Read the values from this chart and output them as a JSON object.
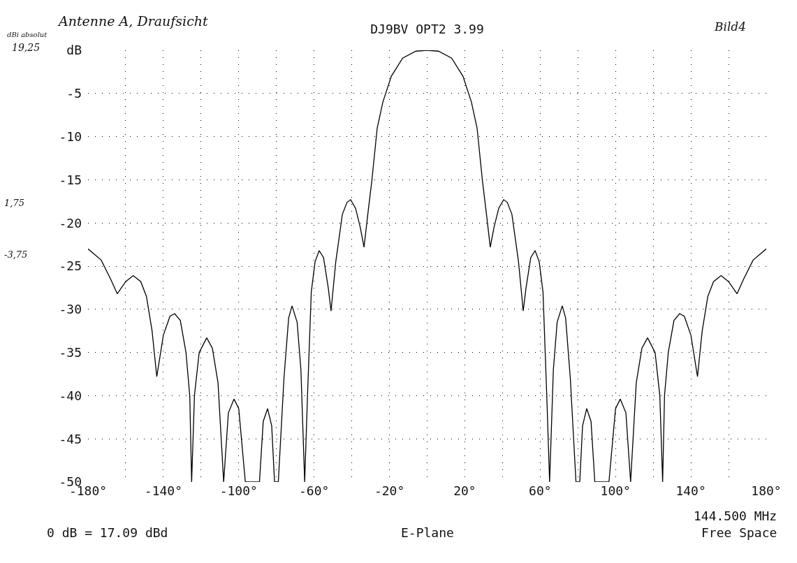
{
  "chart_data": {
    "type": "line",
    "title": "DJ9BV OPT2 3.99",
    "annotations": [
      "Antenne A, Draufsicht",
      "dBi absolut",
      "19,25",
      "Bild4",
      "1,75",
      "-3,75",
      "144.500 MHz",
      "0 dB = 17.09 dBd",
      "E-Plane",
      "Free Space"
    ],
    "x": [
      -180,
      -173,
      -168,
      -164.5,
      -160,
      -156,
      -152,
      -149,
      -146,
      -143.5,
      -140,
      -136.5,
      -134,
      -131,
      -128,
      -126,
      -125,
      -123.5,
      -121,
      -117,
      -114,
      -111,
      -108,
      -105.5,
      -102.5,
      -100,
      -96.5,
      -89,
      -87,
      -84.7,
      -82.5,
      -81,
      -79,
      -76,
      -73.5,
      -71.7,
      -69,
      -67,
      -65,
      -63.5,
      -61.5,
      -59.5,
      -57.3,
      -55,
      -52.5,
      -51,
      -48.5,
      -45,
      -42.5,
      -40.6,
      -38,
      -35.5,
      -33.5,
      -31.5,
      -29.4,
      -26.5,
      -23.5,
      -19,
      -13,
      -6,
      0,
      6,
      13,
      19,
      23.5,
      26.5,
      29.4,
      31.5,
      33.5,
      35.5,
      38,
      40.6,
      42.5,
      45,
      48.5,
      51,
      52.5,
      55,
      57.3,
      59.5,
      61.5,
      63.5,
      65,
      67,
      69,
      71.7,
      73.5,
      76,
      79,
      81,
      82.5,
      84.7,
      87,
      89,
      96.5,
      100,
      102.5,
      105.5,
      108,
      111,
      114,
      117,
      121,
      123.5,
      125,
      126,
      128,
      131,
      134,
      136.5,
      140,
      143.5,
      146,
      149,
      152,
      156,
      160,
      164.5,
      168,
      173,
      180
    ],
    "series": [
      {
        "color": "#000000",
        "values": [
          -23,
          -24.3,
          -26.5,
          -28.2,
          -26.8,
          -26.1,
          -26.8,
          -28.5,
          -32.5,
          -37.8,
          -33,
          -30.8,
          -30.5,
          -31.3,
          -35,
          -40,
          -50,
          -40,
          -35,
          -33.3,
          -34.5,
          -38.5,
          -50,
          -42,
          -40.4,
          -41.5,
          -50,
          -50,
          -43,
          -41.5,
          -43.5,
          -50,
          -50,
          -38,
          -31,
          -29.6,
          -31.5,
          -37,
          -50,
          -40,
          -28,
          -24.5,
          -23.2,
          -24,
          -27.5,
          -30.2,
          -24.5,
          -19,
          -17.6,
          -17.3,
          -18.3,
          -20.5,
          -22.8,
          -19,
          -15.2,
          -9,
          -6,
          -3,
          -0.9,
          -0.1,
          0,
          -0.1,
          -0.9,
          -3,
          -6,
          -9,
          -15.2,
          -19,
          -22.8,
          -20.5,
          -18.3,
          -17.3,
          -17.6,
          -19,
          -24.5,
          -30.2,
          -27.5,
          -24,
          -23.2,
          -24.5,
          -28,
          -40,
          -50,
          -37,
          -31.5,
          -29.6,
          -31,
          -38,
          -50,
          -50,
          -43.5,
          -41.5,
          -43,
          -50,
          -50,
          -41.5,
          -40.4,
          -42,
          -50,
          -38.5,
          -34.5,
          -33.3,
          -35,
          -40,
          -50,
          -40,
          -35,
          -31.3,
          -30.5,
          -30.8,
          -33,
          -37.8,
          -32.5,
          -28.5,
          -26.8,
          -26.1,
          -26.8,
          -28.2,
          -26.5,
          -24.3,
          -23
        ]
      }
    ],
    "xlim": [
      -180,
      180
    ],
    "xticks": [
      "-180°",
      {
        "value": -160,
        "label": null
      },
      {
        "value": -140,
        "label": "-140°"
      },
      {
        "value": -120,
        "label": null
      },
      {
        "value": -100,
        "label": "-100°"
      },
      {
        "value": -80,
        "label": null
      },
      {
        "value": -60,
        "label": "-60°"
      },
      {
        "value": -40,
        "label": null
      },
      {
        "value": -20,
        "label": "-20°"
      },
      {
        "value": 0,
        "label": null
      },
      {
        "value": 20,
        "label": "20°"
      },
      {
        "value": 40,
        "label": null
      },
      {
        "value": 60,
        "label": "60°"
      },
      {
        "value": 80,
        "label": null
      },
      {
        "value": 100,
        "label": "100°"
      },
      {
        "value": 120,
        "label": null
      },
      {
        "value": 140,
        "label": "140°"
      },
      {
        "value": 160,
        "label": null
      },
      {
        "value": 180,
        "label": "180°"
      }
    ],
    "ylim": [
      -50,
      0
    ],
    "yticks": [
      {
        "value": 0,
        "label": "dB"
      },
      -5,
      -10,
      -15,
      -20,
      -25,
      -30,
      -35,
      -40,
      -45,
      -50
    ],
    "grid": true,
    "marker": "none",
    "line_style": "solid"
  }
}
